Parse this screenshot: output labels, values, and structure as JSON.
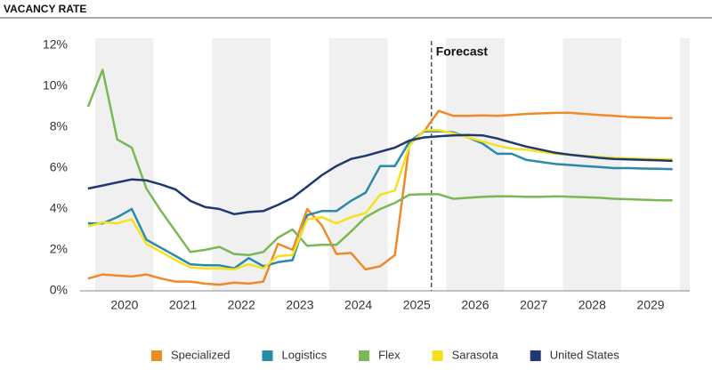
{
  "chart_data": {
    "type": "line",
    "title": "VACANCY RATE",
    "x": [
      2019.875,
      2020.125,
      2020.375,
      2020.625,
      2020.875,
      2021.125,
      2021.375,
      2021.625,
      2021.875,
      2022.125,
      2022.375,
      2022.625,
      2022.875,
      2023.125,
      2023.375,
      2023.625,
      2023.875,
      2024.125,
      2024.375,
      2024.625,
      2024.875,
      2025.125,
      2025.375,
      2025.625,
      2025.875,
      2026.125,
      2026.375,
      2026.625,
      2026.875,
      2027.125,
      2027.375,
      2027.625,
      2027.875,
      2028.125,
      2028.375,
      2028.625,
      2028.875,
      2029.125,
      2029.375,
      2029.625,
      2029.875
    ],
    "xlim": [
      2019.74,
      2030.17
    ],
    "xticks": [
      {
        "value": 2020.5,
        "label": "2020"
      },
      {
        "value": 2021.5,
        "label": "2021"
      },
      {
        "value": 2022.5,
        "label": "2022"
      },
      {
        "value": 2023.5,
        "label": "2023"
      },
      {
        "value": 2024.5,
        "label": "2024"
      },
      {
        "value": 2025.5,
        "label": "2025"
      },
      {
        "value": 2026.5,
        "label": "2026"
      },
      {
        "value": 2027.5,
        "label": "2027"
      },
      {
        "value": 2028.5,
        "label": "2028"
      },
      {
        "value": 2029.5,
        "label": "2029"
      }
    ],
    "ylim": [
      0,
      12
    ],
    "yticks": [
      {
        "value": 0,
        "label": "0%"
      },
      {
        "value": 2,
        "label": "2%"
      },
      {
        "value": 4,
        "label": "4%"
      },
      {
        "value": 6,
        "label": "6%"
      },
      {
        "value": 8,
        "label": "8%"
      },
      {
        "value": 10,
        "label": "10%"
      },
      {
        "value": 12,
        "label": "12%"
      }
    ],
    "grid": false,
    "alternate_year_shading": "#f0f0f0",
    "forecast": {
      "x": 2025.75,
      "label": "Forecast"
    },
    "legend": "bottom",
    "series": [
      {
        "name": "Specialized",
        "color": "#ee8a2a",
        "values": [
          0.6,
          0.8,
          0.75,
          0.7,
          0.8,
          0.6,
          0.45,
          0.45,
          0.35,
          0.3,
          0.4,
          0.35,
          0.45,
          2.3,
          2.0,
          4.0,
          3.2,
          1.8,
          1.85,
          1.05,
          1.2,
          1.75,
          7.2,
          7.8,
          8.8,
          8.55,
          8.55,
          8.58,
          8.55,
          8.6,
          8.65,
          8.68,
          8.7,
          8.7,
          8.65,
          8.6,
          8.55,
          8.5,
          8.48,
          8.45,
          8.45
        ]
      },
      {
        "name": "Logistics",
        "color": "#2a8aa8",
        "values": [
          3.3,
          3.3,
          3.6,
          4.0,
          2.5,
          2.1,
          1.7,
          1.3,
          1.25,
          1.25,
          1.1,
          1.6,
          1.2,
          1.4,
          1.5,
          3.7,
          3.9,
          3.9,
          4.4,
          4.8,
          6.1,
          6.1,
          7.3,
          7.8,
          7.8,
          7.75,
          7.5,
          7.2,
          6.7,
          6.7,
          6.4,
          6.3,
          6.2,
          6.15,
          6.1,
          6.05,
          6.0,
          6.0,
          5.98,
          5.97,
          5.95
        ]
      },
      {
        "name": "Flex",
        "color": "#7ab855",
        "values": [
          9.0,
          10.8,
          7.4,
          7.0,
          5.0,
          3.9,
          2.9,
          1.9,
          2.0,
          2.15,
          1.8,
          1.75,
          1.9,
          2.6,
          3.0,
          2.2,
          2.25,
          2.25,
          2.9,
          3.6,
          4.0,
          4.3,
          4.7,
          4.72,
          4.72,
          4.5,
          4.55,
          4.6,
          4.62,
          4.62,
          4.6,
          4.6,
          4.62,
          4.6,
          4.58,
          4.55,
          4.5,
          4.48,
          4.45,
          4.43,
          4.42
        ]
      },
      {
        "name": "Sarasota",
        "color": "#f7e01c",
        "values": [
          3.15,
          3.35,
          3.3,
          3.5,
          2.3,
          1.9,
          1.5,
          1.15,
          1.1,
          1.1,
          1.05,
          1.3,
          1.1,
          1.7,
          1.75,
          3.5,
          3.6,
          3.3,
          3.6,
          3.8,
          4.7,
          4.9,
          7.1,
          7.85,
          7.85,
          7.7,
          7.5,
          7.3,
          7.1,
          6.95,
          6.9,
          6.8,
          6.7,
          6.65,
          6.6,
          6.55,
          6.5,
          6.48,
          6.45,
          6.45,
          6.43
        ]
      },
      {
        "name": "United States",
        "color": "#1f3870",
        "values": [
          5.0,
          5.15,
          5.3,
          5.45,
          5.4,
          5.2,
          4.95,
          4.4,
          4.1,
          4.0,
          3.75,
          3.85,
          3.9,
          4.2,
          4.55,
          5.1,
          5.65,
          6.1,
          6.45,
          6.6,
          6.8,
          7.0,
          7.35,
          7.5,
          7.55,
          7.6,
          7.62,
          7.6,
          7.45,
          7.25,
          7.05,
          6.9,
          6.75,
          6.65,
          6.58,
          6.5,
          6.45,
          6.42,
          6.4,
          6.38,
          6.35
        ]
      }
    ]
  }
}
